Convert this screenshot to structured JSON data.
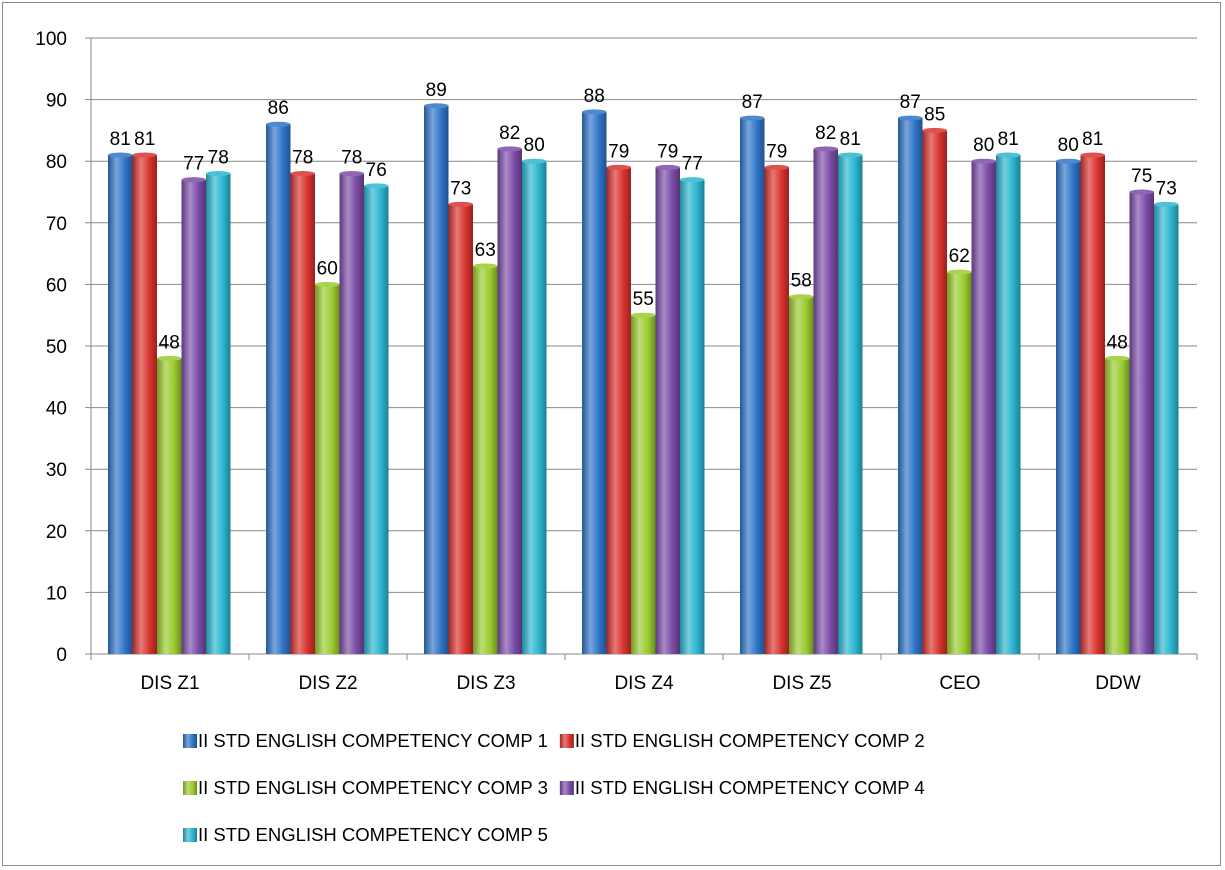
{
  "chart_data": {
    "type": "bar",
    "title": "",
    "xlabel": "",
    "ylabel": "",
    "ylim": [
      0,
      100
    ],
    "yticks": [
      0,
      10,
      20,
      30,
      40,
      50,
      60,
      70,
      80,
      90,
      100
    ],
    "grid": true,
    "legend_position": "bottom",
    "categories": [
      "DIS Z1",
      "DIS Z2",
      "DIS Z3",
      "DIS Z4",
      "DIS Z5",
      "CEO",
      "DDW"
    ],
    "series": [
      {
        "name": "II STD ENGLISH COMPETENCY COMP 1",
        "color": "#2f74c8",
        "values": [
          81,
          86,
          89,
          88,
          87,
          87,
          80
        ]
      },
      {
        "name": "II STD ENGLISH COMPETENCY COMP 2",
        "color": "#d8322d",
        "values": [
          81,
          78,
          73,
          79,
          79,
          85,
          81
        ]
      },
      {
        "name": "II STD ENGLISH COMPETENCY COMP 3",
        "color": "#9acb2e",
        "values": [
          48,
          60,
          63,
          55,
          58,
          62,
          48
        ]
      },
      {
        "name": "II STD ENGLISH COMPETENCY COMP 4",
        "color": "#7a4ba6",
        "values": [
          77,
          78,
          82,
          79,
          82,
          80,
          75
        ]
      },
      {
        "name": "II STD ENGLISH COMPETENCY COMP 5",
        "color": "#2bb5cf",
        "values": [
          78,
          76,
          80,
          77,
          81,
          81,
          73
        ]
      }
    ]
  }
}
